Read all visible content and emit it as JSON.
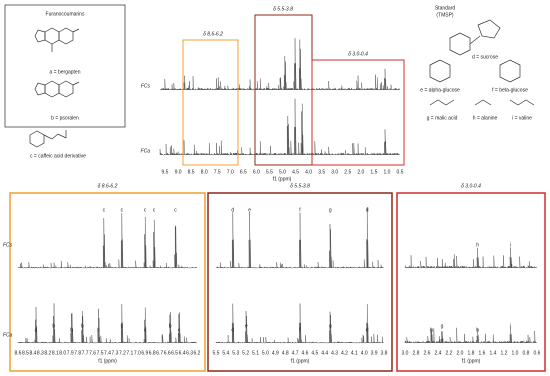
{
  "furanocoumarins": {
    "title": "Furanocoumarins",
    "labels": [
      "a = bergapten",
      "b = psoralen"
    ]
  },
  "caffeic": "c = caffeic acid derivative",
  "standard": [
    "Standard",
    "(TMSP)"
  ],
  "compounds": [
    "d = sucrose",
    "e = alpha-glucose",
    "f = beta-glucose",
    "g = malic acid",
    "h = alanine",
    "i = valine"
  ],
  "overview": {
    "regions": [
      "δ 8.6-6.2",
      "δ 5.5-3.8",
      "δ 3.0-0.4"
    ],
    "samples": [
      "FCs",
      "FCa"
    ],
    "xticks": [
      "9.5",
      "9.0",
      "8.5",
      "8.0",
      "7.5",
      "7.0",
      "6.5",
      "6.0",
      "5.5",
      "5.0",
      "4.5",
      "4.0",
      "3.5",
      "3.0",
      "2.5",
      "2.0",
      "1.5",
      "1.0",
      "0.5"
    ],
    "xlabel": "f1 (ppm)"
  },
  "panels": [
    {
      "title": "δ 8.6-6.2",
      "samples": [
        "FCs",
        "FCa"
      ],
      "xticks": [
        "8.6",
        "8.5",
        "8.4",
        "8.3",
        "8.2",
        "8.1",
        "8.0",
        "7.9",
        "7.8",
        "7.7",
        "7.6",
        "7.5",
        "7.4",
        "7.3",
        "7.2",
        "7.1",
        "7.0",
        "6.9",
        "6.8",
        "6.7",
        "6.6",
        "6.5",
        "6.4",
        "6.3",
        "6.2"
      ],
      "xlabel": "f1 (ppm)",
      "top_peaks": [
        "c",
        "c",
        "c",
        "c",
        "c"
      ],
      "bottom_peaks": [
        "a",
        "b",
        "b",
        "b",
        "c",
        "c",
        "c",
        "b",
        "c"
      ]
    },
    {
      "title": "δ 5.5-3.8",
      "samples": [
        "FCs",
        "FCa"
      ],
      "xticks": [
        "5.5",
        "5.4",
        "5.3",
        "5.2",
        "5.1",
        "5.0",
        "4.9",
        "4.8",
        "4.7",
        "4.6",
        "4.5",
        "4.4",
        "4.3",
        "4.2",
        "4.1",
        "4.0",
        "3.9",
        "3.8"
      ],
      "xlabel": "f1 (ppm)",
      "top_peaks": [
        "d",
        "e",
        "f",
        "g",
        "d"
      ],
      "bottom_peaks": [
        "d",
        "e",
        "f",
        "g",
        "d"
      ]
    },
    {
      "title": "δ 3.0-0.4",
      "samples": [
        "FCs",
        "FCa"
      ],
      "xticks": [
        "3.0",
        "2.8",
        "2.6",
        "2.4",
        "2.2",
        "2.0",
        "1.8",
        "1.6",
        "1.4",
        "1.2",
        "1.0",
        "0.8",
        "0.6"
      ],
      "xlabel": "f1 (ppm)",
      "top_peaks": [
        "h",
        "i"
      ],
      "bottom_peaks": [
        "g",
        "g",
        "h",
        "i"
      ]
    }
  ]
}
